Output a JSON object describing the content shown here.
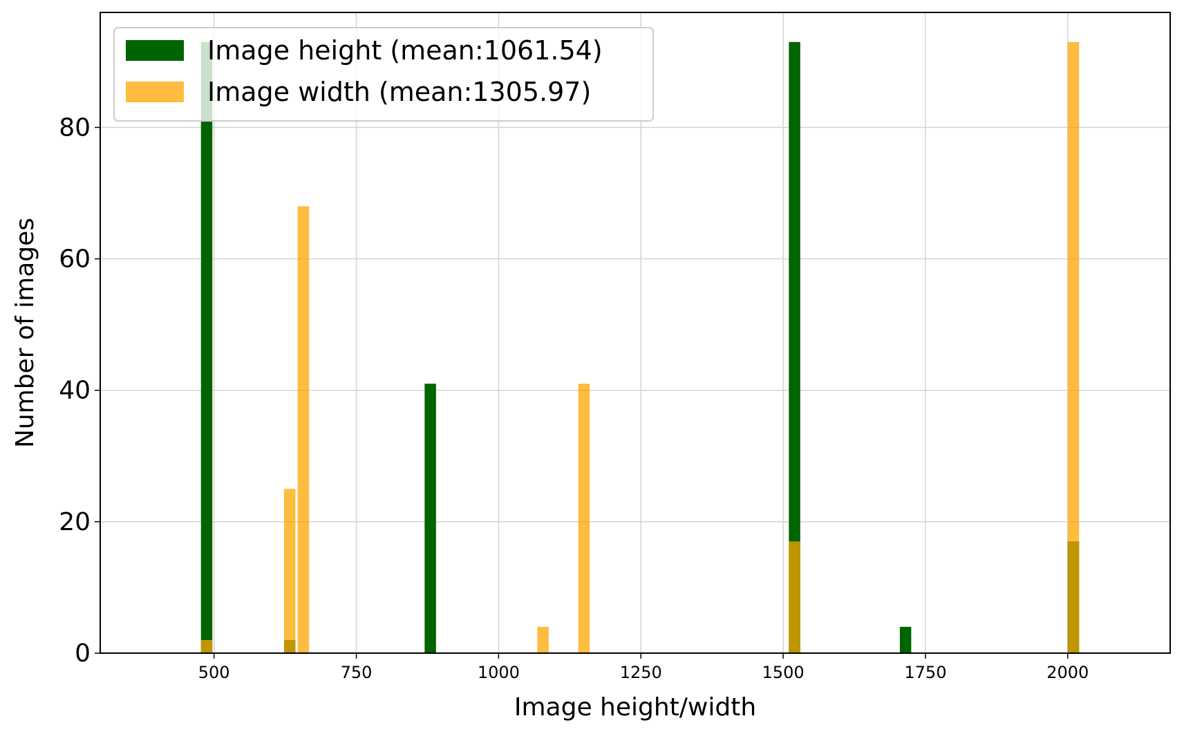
{
  "chart_data": {
    "type": "bar",
    "title": "",
    "xlabel": "Image height/width",
    "ylabel": "Number of images",
    "xlim": [
      300,
      2180
    ],
    "ylim": [
      0,
      97.5
    ],
    "x_ticks": [
      500,
      750,
      1000,
      1250,
      1500,
      1750,
      2000
    ],
    "y_ticks": [
      0,
      20,
      40,
      60,
      80
    ],
    "grid": true,
    "legend_position": "top-left",
    "bar_width": 20,
    "series": [
      {
        "name": "Image height (mean:1061.54)",
        "color": "#006400",
        "points": [
          {
            "x": 487,
            "y": 93
          },
          {
            "x": 633,
            "y": 2
          },
          {
            "x": 880,
            "y": 41
          },
          {
            "x": 1520,
            "y": 93
          },
          {
            "x": 1715,
            "y": 4
          },
          {
            "x": 2010,
            "y": 17
          }
        ]
      },
      {
        "name": "Image width (mean:1305.97)",
        "color": "#FFA500",
        "opacity": 0.75,
        "points": [
          {
            "x": 487,
            "y": 2
          },
          {
            "x": 633,
            "y": 25
          },
          {
            "x": 657,
            "y": 68
          },
          {
            "x": 1078,
            "y": 4
          },
          {
            "x": 1150,
            "y": 41
          },
          {
            "x": 1520,
            "y": 17
          },
          {
            "x": 2010,
            "y": 93
          }
        ]
      }
    ]
  }
}
